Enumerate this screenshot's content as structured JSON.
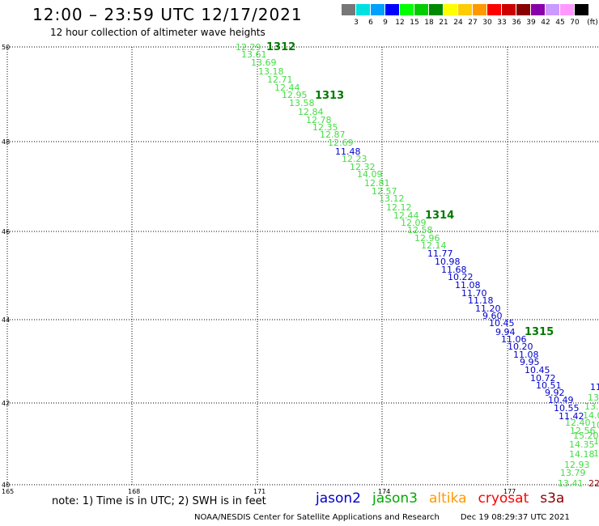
{
  "header": {
    "title": "12:00 – 23:59 UTC 12/17/2021",
    "subtitle": "12 hour collection of altimeter wave heights"
  },
  "legend": {
    "unit": "(ft)",
    "colors": [
      "#777777",
      "#00e0e0",
      "#00a0ff",
      "#0000ff",
      "#00ff00",
      "#00cc00",
      "#008800",
      "#ffff00",
      "#ffcc00",
      "#ff9900",
      "#ff0000",
      "#cc0000",
      "#880000",
      "#8800aa",
      "#cc99ff",
      "#ff99ff",
      "#000000"
    ],
    "labels": [
      "3",
      "6",
      "9",
      "12",
      "15",
      "18",
      "21",
      "24",
      "27",
      "30",
      "33",
      "36",
      "39",
      "42",
      "45",
      "70"
    ]
  },
  "axes": {
    "x_ticks": [
      "165",
      "168",
      "171",
      "174",
      "177"
    ],
    "y_ticks": [
      "50",
      "48",
      "46",
      "44",
      "42",
      "40"
    ]
  },
  "track": {
    "cycles": [
      "1312",
      "1313",
      "1314",
      "1315"
    ],
    "values": [
      {
        "v": "12.29",
        "s": "jason3"
      },
      {
        "v": "13.61",
        "s": "jason3"
      },
      {
        "v": "13.69",
        "s": "jason3"
      },
      {
        "v": "13.18",
        "s": "jason3"
      },
      {
        "v": "12.71",
        "s": "jason3"
      },
      {
        "v": "12.44",
        "s": "jason3"
      },
      {
        "v": "12.95",
        "s": "jason3"
      },
      {
        "v": "13.58",
        "s": "jason3"
      },
      {
        "v": "12.84",
        "s": "jason3"
      },
      {
        "v": "12.78",
        "s": "jason3"
      },
      {
        "v": "12.35",
        "s": "jason3"
      },
      {
        "v": "12.87",
        "s": "jason3"
      },
      {
        "v": "12.69",
        "s": "jason3"
      },
      {
        "v": "11.48",
        "s": "jason2"
      },
      {
        "v": "12.23",
        "s": "jason3"
      },
      {
        "v": "12.32",
        "s": "jason3"
      },
      {
        "v": "14.09",
        "s": "jason3"
      },
      {
        "v": "12.81",
        "s": "jason3"
      },
      {
        "v": "12.57",
        "s": "jason3"
      },
      {
        "v": "13.12",
        "s": "jason3"
      },
      {
        "v": "12.12",
        "s": "jason3"
      },
      {
        "v": "12.44",
        "s": "jason3"
      },
      {
        "v": "12.09",
        "s": "jason3"
      },
      {
        "v": "12.58",
        "s": "jason3"
      },
      {
        "v": "12.96",
        "s": "jason3"
      },
      {
        "v": "12.14",
        "s": "jason3"
      },
      {
        "v": "11.77",
        "s": "jason2"
      },
      {
        "v": "10.98",
        "s": "jason2"
      },
      {
        "v": "11.68",
        "s": "jason2"
      },
      {
        "v": "10.22",
        "s": "jason2"
      },
      {
        "v": "11.08",
        "s": "jason2"
      },
      {
        "v": "11.70",
        "s": "jason2"
      },
      {
        "v": "11.18",
        "s": "jason2"
      },
      {
        "v": "11.20",
        "s": "jason2"
      },
      {
        "v": "9.60",
        "s": "jason2"
      },
      {
        "v": "10.45",
        "s": "jason2"
      },
      {
        "v": "9.94",
        "s": "jason2"
      },
      {
        "v": "11.06",
        "s": "jason2"
      },
      {
        "v": "10.20",
        "s": "jason2"
      },
      {
        "v": "11.08",
        "s": "jason2"
      },
      {
        "v": "9.95",
        "s": "jason2"
      },
      {
        "v": "10.45",
        "s": "jason2"
      },
      {
        "v": "10.72",
        "s": "jason2"
      },
      {
        "v": "10.51",
        "s": "jason2"
      },
      {
        "v": "9.92",
        "s": "jason2"
      },
      {
        "v": "10.49",
        "s": "jason2"
      },
      {
        "v": "10.55",
        "s": "jason2"
      },
      {
        "v": "11.42",
        "s": "jason2"
      },
      {
        "v": "12.40",
        "s": "jason3"
      },
      {
        "v": "12.56",
        "s": "jason3"
      },
      {
        "v": "15.20",
        "s": "jason3"
      },
      {
        "v": "14.35",
        "s": "jason3"
      },
      {
        "v": "14.18",
        "s": "jason3"
      },
      {
        "v": "12.93",
        "s": "jason3"
      },
      {
        "v": "13.79",
        "s": "jason3"
      },
      {
        "v": "13.41",
        "s": "jason3"
      }
    ]
  },
  "clipped_edge_labels": [
    "11",
    "13.",
    "13.",
    "14.0",
    "10",
    "14",
    "14",
    "22"
  ],
  "footer": {
    "note": "note:  1) Time is in UTC;  2) SWH is in feet",
    "satellites": [
      {
        "name": "jason2",
        "color": "#0000cc"
      },
      {
        "name": "jason3",
        "color": "#00aa00"
      },
      {
        "name": "altika",
        "color": "#ff9900"
      },
      {
        "name": "cryosat",
        "color": "#ff0000"
      },
      {
        "name": "s3a",
        "color": "#880000"
      }
    ],
    "credit": "NOAA/NESDIS Center for Satellite Applications and Research",
    "timestamp": "Dec 19 08:29:37 UTC 2021"
  }
}
